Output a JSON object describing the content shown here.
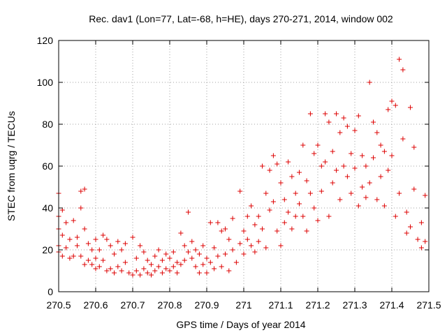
{
  "chart_data": {
    "type": "scatter",
    "title": "Rec. dav1 (Lon=77, Lat=-68, h=HE), days 270-271, 2014, window 002",
    "xlabel": "GPS time / Days of year 2014",
    "ylabel": "STEC from uqrg / TECUs",
    "xlim": [
      270.5,
      271.5
    ],
    "ylim": [
      0,
      120
    ],
    "x_ticks": [
      "270.5",
      "270.6",
      "270.7",
      "270.8",
      "270.9",
      "271",
      "271.1",
      "271.2",
      "271.3",
      "271.4",
      "271.5"
    ],
    "y_ticks": [
      "0",
      "20",
      "40",
      "60",
      "80",
      "100",
      "120"
    ],
    "grid": true,
    "marker": "+",
    "color": "#dd0000",
    "series": [
      {
        "points": [
          [
            270.5,
            47
          ],
          [
            270.5,
            36
          ],
          [
            270.5,
            30
          ],
          [
            270.5,
            22
          ],
          [
            270.5,
            19
          ],
          [
            270.51,
            39
          ],
          [
            270.51,
            27
          ],
          [
            270.51,
            17
          ],
          [
            270.52,
            33
          ],
          [
            270.52,
            21
          ],
          [
            270.53,
            25
          ],
          [
            270.53,
            16
          ],
          [
            270.54,
            34
          ],
          [
            270.54,
            17
          ],
          [
            270.55,
            26
          ],
          [
            270.55,
            22
          ],
          [
            270.56,
            48
          ],
          [
            270.56,
            40
          ],
          [
            270.56,
            17
          ],
          [
            270.57,
            49
          ],
          [
            270.57,
            30
          ],
          [
            270.57,
            13
          ],
          [
            270.58,
            23
          ],
          [
            270.58,
            15
          ],
          [
            270.59,
            20
          ],
          [
            270.59,
            13
          ],
          [
            270.6,
            25
          ],
          [
            270.6,
            16
          ],
          [
            270.6,
            11
          ],
          [
            270.61,
            20
          ],
          [
            270.61,
            12
          ],
          [
            270.62,
            27
          ],
          [
            270.62,
            15
          ],
          [
            270.63,
            25
          ],
          [
            270.63,
            10
          ],
          [
            270.64,
            22
          ],
          [
            270.64,
            11
          ],
          [
            270.65,
            18
          ],
          [
            270.65,
            9
          ],
          [
            270.66,
            24
          ],
          [
            270.66,
            12
          ],
          [
            270.67,
            20
          ],
          [
            270.67,
            10
          ],
          [
            270.68,
            23
          ],
          [
            270.68,
            14
          ],
          [
            270.69,
            9
          ],
          [
            270.7,
            26
          ],
          [
            270.7,
            8
          ],
          [
            270.71,
            16
          ],
          [
            270.71,
            10
          ],
          [
            270.72,
            22
          ],
          [
            270.72,
            8
          ],
          [
            270.73,
            19
          ],
          [
            270.73,
            11
          ],
          [
            270.74,
            15
          ],
          [
            270.74,
            9
          ],
          [
            270.75,
            13
          ],
          [
            270.75,
            8
          ],
          [
            270.76,
            17
          ],
          [
            270.76,
            10
          ],
          [
            270.77,
            20
          ],
          [
            270.77,
            12
          ],
          [
            270.78,
            15
          ],
          [
            270.78,
            9
          ],
          [
            270.79,
            18
          ],
          [
            270.79,
            11
          ],
          [
            270.8,
            16
          ],
          [
            270.8,
            10
          ],
          [
            270.81,
            19
          ],
          [
            270.81,
            12
          ],
          [
            270.82,
            14
          ],
          [
            270.82,
            9
          ],
          [
            270.83,
            28
          ],
          [
            270.83,
            13
          ],
          [
            270.84,
            22
          ],
          [
            270.84,
            15
          ],
          [
            270.85,
            38
          ],
          [
            270.85,
            19
          ],
          [
            270.86,
            24
          ],
          [
            270.86,
            16
          ],
          [
            270.87,
            12
          ],
          [
            270.87,
            20
          ],
          [
            270.88,
            18
          ],
          [
            270.88,
            9
          ],
          [
            270.89,
            22
          ],
          [
            270.89,
            13
          ],
          [
            270.9,
            16
          ],
          [
            270.9,
            9
          ],
          [
            270.91,
            33
          ],
          [
            270.91,
            14
          ],
          [
            270.92,
            21
          ],
          [
            270.92,
            11
          ],
          [
            270.93,
            33
          ],
          [
            270.93,
            17
          ],
          [
            270.94,
            29
          ],
          [
            270.94,
            12
          ],
          [
            270.95,
            30
          ],
          [
            270.95,
            18
          ],
          [
            270.96,
            25
          ],
          [
            270.96,
            10
          ],
          [
            270.97,
            35
          ],
          [
            270.97,
            20
          ],
          [
            270.98,
            14
          ],
          [
            270.99,
            48
          ],
          [
            270.99,
            23
          ],
          [
            271.0,
            29
          ],
          [
            271.0,
            18
          ],
          [
            271.01,
            36
          ],
          [
            271.01,
            25
          ],
          [
            271.02,
            41
          ],
          [
            271.02,
            22
          ],
          [
            271.03,
            32
          ],
          [
            271.03,
            19
          ],
          [
            271.04,
            36
          ],
          [
            271.04,
            24
          ],
          [
            271.05,
            60
          ],
          [
            271.05,
            30
          ],
          [
            271.06,
            47
          ],
          [
            271.06,
            21
          ],
          [
            271.07,
            58
          ],
          [
            271.07,
            39
          ],
          [
            271.08,
            65
          ],
          [
            271.08,
            43
          ],
          [
            271.09,
            61
          ],
          [
            271.09,
            29
          ],
          [
            271.1,
            52
          ],
          [
            271.1,
            22
          ],
          [
            271.11,
            44
          ],
          [
            271.11,
            33
          ],
          [
            271.12,
            62
          ],
          [
            271.12,
            38
          ],
          [
            271.13,
            55
          ],
          [
            271.13,
            30
          ],
          [
            271.14,
            47
          ],
          [
            271.14,
            36
          ],
          [
            271.15,
            57
          ],
          [
            271.15,
            42
          ],
          [
            271.16,
            70
          ],
          [
            271.16,
            36
          ],
          [
            271.17,
            53
          ],
          [
            271.17,
            29
          ],
          [
            271.18,
            85
          ],
          [
            271.18,
            47
          ],
          [
            271.19,
            66
          ],
          [
            271.19,
            40
          ],
          [
            271.2,
            70
          ],
          [
            271.2,
            34
          ],
          [
            271.21,
            60
          ],
          [
            271.21,
            48
          ],
          [
            271.22,
            85
          ],
          [
            271.22,
            62
          ],
          [
            271.23,
            81
          ],
          [
            271.23,
            36
          ],
          [
            271.24,
            67
          ],
          [
            271.24,
            52
          ],
          [
            271.25,
            85
          ],
          [
            271.25,
            58
          ],
          [
            271.26,
            76
          ],
          [
            271.26,
            44
          ],
          [
            271.27,
            83
          ],
          [
            271.27,
            60
          ],
          [
            271.28,
            79
          ],
          [
            271.28,
            55
          ],
          [
            271.29,
            66
          ],
          [
            271.29,
            47
          ],
          [
            271.3,
            77
          ],
          [
            271.3,
            59
          ],
          [
            271.31,
            84
          ],
          [
            271.31,
            41
          ],
          [
            271.32,
            65
          ],
          [
            271.32,
            50
          ],
          [
            271.33,
            60
          ],
          [
            271.33,
            45
          ],
          [
            271.34,
            100
          ],
          [
            271.34,
            52
          ],
          [
            271.35,
            81
          ],
          [
            271.35,
            64
          ],
          [
            271.36,
            76
          ],
          [
            271.36,
            44
          ],
          [
            271.37,
            70
          ],
          [
            271.37,
            55
          ],
          [
            271.38,
            67
          ],
          [
            271.38,
            41
          ],
          [
            271.39,
            87
          ],
          [
            271.39,
            58
          ],
          [
            271.4,
            91
          ],
          [
            271.4,
            65
          ],
          [
            271.41,
            89
          ],
          [
            271.41,
            36
          ],
          [
            271.42,
            111
          ],
          [
            271.42,
            47
          ],
          [
            271.43,
            106
          ],
          [
            271.43,
            73
          ],
          [
            271.44,
            38
          ],
          [
            271.44,
            28
          ],
          [
            271.45,
            88
          ],
          [
            271.45,
            31
          ],
          [
            271.46,
            69
          ],
          [
            271.46,
            49
          ],
          [
            271.47,
            25
          ],
          [
            271.48,
            21
          ],
          [
            271.48,
            33
          ],
          [
            271.49,
            46
          ],
          [
            271.49,
            24
          ]
        ]
      }
    ]
  }
}
